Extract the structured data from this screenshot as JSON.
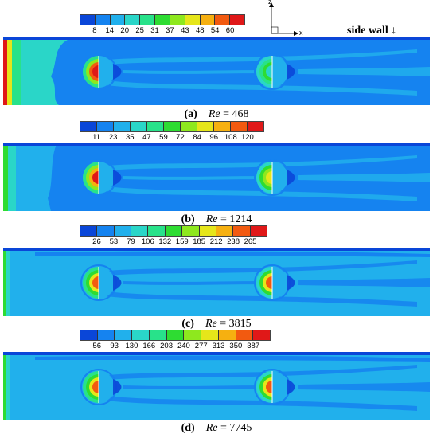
{
  "axes_indicator": {
    "z_label": "z",
    "x_label": "x"
  },
  "side_wall_label": "side wall ↓",
  "colors": [
    "#0a46d8",
    "#1583f0",
    "#21b0ec",
    "#2ad6c8",
    "#28e28a",
    "#2edc32",
    "#8ee81e",
    "#e6e61a",
    "#f6b010",
    "#f25a10",
    "#e01818"
  ],
  "panels": [
    {
      "id": "a",
      "label": "(a)",
      "re_symbol": "Re",
      "re_text": "= 468",
      "colorbar_ticks": [
        "8",
        "14",
        "20",
        "25",
        "31",
        "37",
        "43",
        "48",
        "54",
        "60"
      ]
    },
    {
      "id": "b",
      "label": "(b)",
      "re_symbol": "Re",
      "re_text": "= 1214",
      "colorbar_ticks": [
        "11",
        "23",
        "35",
        "47",
        "59",
        "72",
        "84",
        "96",
        "108",
        "120"
      ]
    },
    {
      "id": "c",
      "label": "(c)",
      "re_symbol": "Re",
      "re_text": "= 3815",
      "colorbar_ticks": [
        "26",
        "53",
        "79",
        "106",
        "132",
        "159",
        "185",
        "212",
        "238",
        "265"
      ]
    },
    {
      "id": "d",
      "label": "(d)",
      "re_symbol": "Re",
      "re_text": "= 7745",
      "colorbar_ticks": [
        "56",
        "93",
        "130",
        "166",
        "203",
        "240",
        "277",
        "313",
        "350",
        "387"
      ]
    }
  ]
}
